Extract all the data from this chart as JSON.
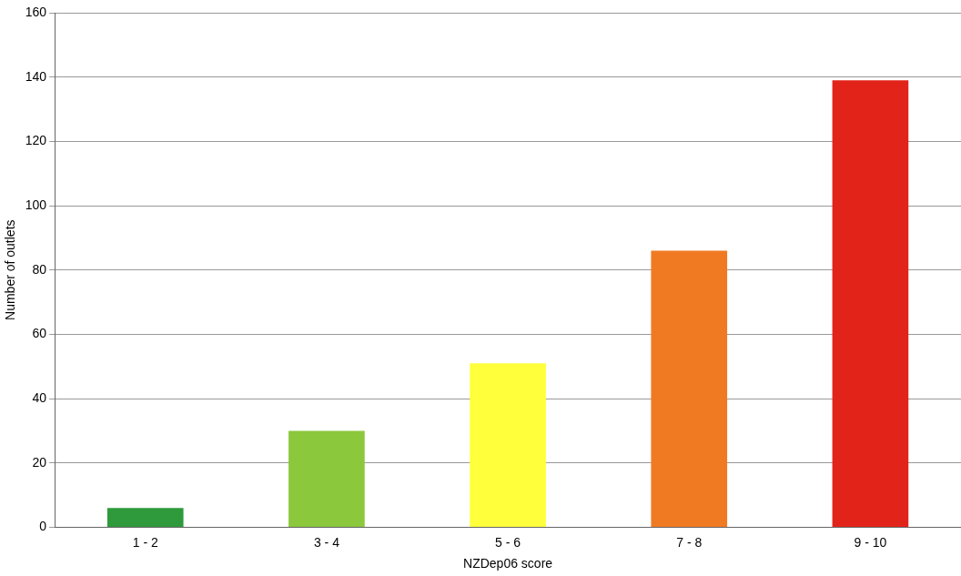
{
  "chart_data": {
    "type": "bar",
    "xlabel": "NZDep06 score",
    "ylabel": "Number of outlets",
    "categories": [
      "1 - 2",
      "3 - 4",
      "5 - 6",
      "7 - 8",
      "9 - 10"
    ],
    "values": [
      6,
      30,
      51,
      86,
      139
    ],
    "colors": [
      "#2e9a3c",
      "#8cc83c",
      "#ffff3c",
      "#f07a22",
      "#e2231a"
    ],
    "ylim": [
      0,
      160
    ],
    "yticks": [
      0,
      20,
      40,
      60,
      80,
      100,
      120,
      140,
      160
    ],
    "grid": "y",
    "legend": false
  }
}
